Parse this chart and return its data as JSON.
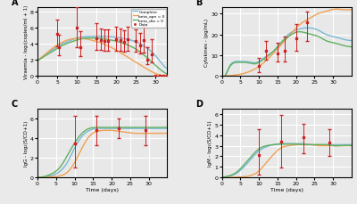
{
  "fig_bg": "#eaeaea",
  "panel_bg": "#e8e8e8",
  "grid_color": "#ffffff",
  "line_complete": "#7ab8d4",
  "line_beta_apn": "#f0a050",
  "line_beta_dia": "#60b060",
  "data_color": "#cc2222",
  "A": {
    "label": "A",
    "ylabel": "Viraemia - log₂(copies/ml + 1)",
    "xlim": [
      0,
      33
    ],
    "ylim": [
      0,
      8.5
    ],
    "xticks": [
      0,
      5,
      10,
      15,
      20,
      25,
      30
    ],
    "yticks": [
      0,
      2,
      4,
      6,
      8
    ],
    "data_x": [
      5,
      5.5,
      10,
      11,
      15,
      16,
      17,
      18,
      20,
      21,
      22,
      23,
      25,
      26,
      27,
      28,
      29,
      30,
      31,
      32,
      33
    ],
    "data_y": [
      5.2,
      3.6,
      6.0,
      3.5,
      4.7,
      4.4,
      4.3,
      4.3,
      4.6,
      4.4,
      4.2,
      4.6,
      4.3,
      3.8,
      4.4,
      2.0,
      2.7,
      0.0,
      0.0,
      0.0,
      0.0
    ],
    "data_yerr_lo": [
      1.5,
      1.0,
      2.5,
      1.0,
      1.5,
      1.2,
      1.2,
      1.2,
      1.5,
      1.3,
      1.2,
      1.5,
      1.3,
      1.0,
      1.5,
      0.5,
      1.0,
      0.0,
      0.0,
      0.0,
      0.0
    ],
    "data_yerr_hi": [
      1.8,
      1.5,
      2.5,
      2.0,
      1.8,
      1.5,
      1.5,
      1.5,
      1.5,
      1.5,
      1.5,
      1.5,
      1.5,
      1.5,
      1.8,
      1.5,
      1.8,
      0.0,
      0.0,
      0.0,
      0.0
    ],
    "curve_complete_t": [
      0,
      2,
      4,
      6,
      8,
      10,
      12,
      14,
      16,
      18,
      20,
      22,
      24,
      26,
      28,
      30,
      32,
      33
    ],
    "curve_complete_y": [
      1.9,
      2.6,
      3.3,
      3.9,
      4.3,
      4.7,
      4.85,
      4.9,
      4.9,
      4.85,
      4.8,
      4.6,
      4.4,
      4.0,
      3.4,
      2.5,
      1.3,
      0.9
    ],
    "curve_apn_t": [
      0,
      2,
      4,
      6,
      8,
      10,
      12,
      14,
      16,
      18,
      20,
      22,
      24,
      26,
      28,
      30,
      32,
      33
    ],
    "curve_apn_y": [
      1.9,
      2.7,
      3.5,
      4.1,
      4.5,
      4.65,
      4.6,
      4.4,
      4.1,
      3.7,
      3.2,
      2.6,
      2.0,
      1.4,
      0.8,
      0.3,
      0.05,
      0.02
    ],
    "curve_dia_t": [
      0,
      2,
      4,
      6,
      8,
      10,
      12,
      14,
      16,
      18,
      20,
      22,
      24,
      26,
      28,
      30,
      32,
      33
    ],
    "curve_dia_y": [
      1.85,
      2.5,
      3.1,
      3.7,
      4.1,
      4.45,
      4.65,
      4.7,
      4.65,
      4.5,
      4.3,
      4.0,
      3.6,
      3.0,
      2.2,
      1.3,
      0.5,
      0.2
    ]
  },
  "B": {
    "label": "B",
    "ylabel": "Cytokines - (pg/mL)",
    "xlim": [
      0,
      35
    ],
    "ylim": [
      0,
      33
    ],
    "xticks": [
      0,
      5,
      10,
      15,
      20,
      25,
      30
    ],
    "yticks": [
      0,
      10,
      20,
      30
    ],
    "data_x": [
      10,
      12,
      15,
      17,
      20,
      23
    ],
    "data_y": [
      5.0,
      12.0,
      11.0,
      12.0,
      18.0,
      26.0
    ],
    "data_yerr_lo": [
      3.0,
      4.0,
      4.0,
      5.0,
      6.0,
      9.0
    ],
    "data_yerr_hi": [
      3.5,
      5.0,
      5.0,
      7.0,
      7.0,
      5.0
    ],
    "curve_complete_t": [
      0,
      1,
      2,
      3,
      4,
      5,
      6,
      7,
      8,
      9,
      10,
      12,
      14,
      16,
      18,
      20,
      22,
      24,
      26,
      28,
      30,
      32,
      35
    ],
    "curve_complete_y": [
      0,
      0.5,
      4.5,
      6.5,
      7.0,
      7.0,
      7.0,
      6.8,
      6.5,
      6.3,
      7.0,
      9.5,
      12,
      16,
      20,
      22,
      23,
      23,
      22,
      20,
      19,
      18,
      17
    ],
    "curve_apn_t": [
      0,
      1,
      2,
      3,
      4,
      5,
      6,
      8,
      10,
      12,
      14,
      16,
      18,
      20,
      22,
      24,
      26,
      28,
      30,
      32,
      35
    ],
    "curve_apn_y": [
      0,
      0.0,
      0.1,
      0.3,
      0.5,
      0.8,
      1.2,
      2.5,
      4.5,
      7.5,
      11,
      15,
      19,
      23,
      26,
      28,
      30,
      31,
      32,
      32,
      32
    ],
    "curve_dia_t": [
      0,
      1,
      2,
      3,
      4,
      5,
      6,
      7,
      8,
      9,
      10,
      12,
      14,
      16,
      18,
      20,
      22,
      24,
      26,
      28,
      30,
      32,
      35
    ],
    "curve_dia_y": [
      0,
      0.4,
      4.0,
      6.0,
      6.5,
      6.5,
      6.5,
      6.3,
      6.0,
      5.8,
      6.5,
      9.0,
      12,
      16,
      19,
      21,
      21,
      20,
      19,
      17,
      16,
      15,
      14
    ]
  },
  "C": {
    "label": "C",
    "ylabel": "IgG - log₂(S/CO+1)",
    "xlabel": "Time (days)",
    "xlim": [
      0,
      35
    ],
    "ylim": [
      0,
      7
    ],
    "xticks": [
      0,
      5,
      10,
      15,
      20,
      25,
      30
    ],
    "yticks": [
      0,
      2,
      4,
      6
    ],
    "data_x": [
      10,
      16,
      22,
      29
    ],
    "data_y": [
      3.5,
      4.8,
      5.0,
      4.8
    ],
    "data_yerr_lo": [
      2.5,
      1.5,
      1.0,
      1.5
    ],
    "data_yerr_hi": [
      2.8,
      1.5,
      1.0,
      1.5
    ],
    "curve_complete_t": [
      0,
      2,
      4,
      6,
      8,
      10,
      12,
      14,
      16,
      18,
      20,
      22,
      24,
      26,
      28,
      30,
      32,
      35
    ],
    "curve_complete_y": [
      0,
      0.05,
      0.2,
      0.6,
      1.5,
      3.0,
      4.2,
      4.8,
      5.0,
      5.0,
      5.0,
      5.0,
      5.0,
      5.0,
      5.0,
      5.0,
      5.0,
      5.0
    ],
    "curve_apn_t": [
      0,
      2,
      4,
      6,
      8,
      10,
      12,
      14,
      16,
      18,
      20,
      22,
      24,
      26,
      28,
      30,
      32,
      35
    ],
    "curve_apn_y": [
      0,
      0.0,
      0.05,
      0.15,
      0.5,
      1.5,
      3.0,
      4.2,
      4.7,
      4.8,
      4.8,
      4.7,
      4.6,
      4.5,
      4.5,
      4.5,
      4.5,
      4.5
    ],
    "curve_dia_t": [
      0,
      2,
      4,
      6,
      8,
      10,
      12,
      14,
      16,
      18,
      20,
      22,
      24,
      26,
      28,
      30,
      32,
      35
    ],
    "curve_dia_y": [
      0,
      0.1,
      0.4,
      1.0,
      2.2,
      3.5,
      4.5,
      5.0,
      5.1,
      5.1,
      5.1,
      5.1,
      5.1,
      5.1,
      5.1,
      5.1,
      5.1,
      5.1
    ]
  },
  "D": {
    "label": "D",
    "ylabel": "IgM - log₂(S/CO+1)",
    "xlabel": "Time (days)",
    "xlim": [
      0,
      35
    ],
    "ylim": [
      0,
      6.5
    ],
    "xticks": [
      0,
      5,
      10,
      15,
      20,
      25,
      30
    ],
    "yticks": [
      0,
      1,
      2,
      3,
      4,
      5,
      6
    ],
    "data_x": [
      10,
      16,
      22,
      29
    ],
    "data_y": [
      2.1,
      3.4,
      3.8,
      3.3
    ],
    "data_yerr_lo": [
      1.8,
      2.5,
      1.5,
      1.3
    ],
    "data_yerr_hi": [
      2.5,
      2.5,
      1.3,
      1.3
    ],
    "curve_complete_t": [
      0,
      2,
      4,
      6,
      8,
      10,
      12,
      14,
      16,
      18,
      20,
      22,
      24,
      26,
      28,
      30,
      32,
      35
    ],
    "curve_complete_y": [
      0,
      0.1,
      0.4,
      1.0,
      1.8,
      2.5,
      2.9,
      3.1,
      3.2,
      3.2,
      3.2,
      3.2,
      3.1,
      3.1,
      3.1,
      3.1,
      3.1,
      3.1
    ],
    "curve_apn_t": [
      0,
      2,
      4,
      6,
      8,
      10,
      12,
      14,
      16,
      18,
      20,
      22,
      24,
      26,
      28,
      30,
      32,
      35
    ],
    "curve_apn_y": [
      0,
      0.0,
      0.02,
      0.06,
      0.2,
      0.6,
      1.4,
      2.2,
      2.8,
      3.0,
      3.1,
      3.1,
      3.1,
      3.0,
      3.0,
      3.0,
      3.0,
      3.0
    ],
    "curve_dia_t": [
      0,
      2,
      4,
      6,
      8,
      10,
      12,
      14,
      16,
      18,
      20,
      22,
      24,
      26,
      28,
      30,
      32,
      35
    ],
    "curve_dia_y": [
      0,
      0.15,
      0.5,
      1.2,
      2.0,
      2.7,
      3.0,
      3.1,
      3.15,
      3.15,
      3.15,
      3.1,
      3.1,
      3.1,
      3.1,
      3.0,
      3.0,
      3.0
    ]
  }
}
